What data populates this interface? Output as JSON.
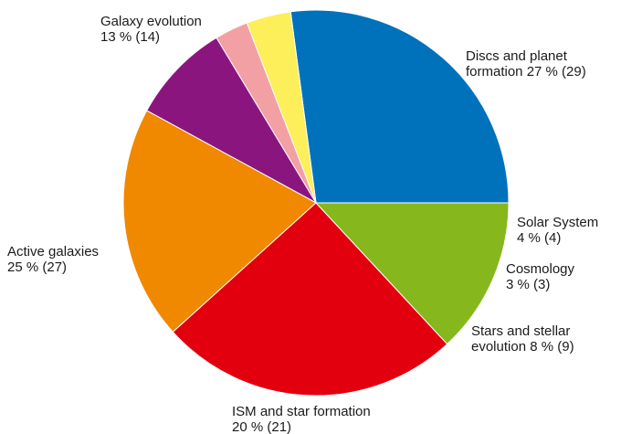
{
  "chart_data": {
    "type": "pie",
    "title": "",
    "slices": [
      {
        "name": "Discs and planet formation",
        "percent": 27,
        "count": 29,
        "color": "#0072bc",
        "label_lines": [
          "Discs and planet",
          "formation 27 % (29)"
        ]
      },
      {
        "name": "Solar System",
        "percent": 4,
        "count": 4,
        "color": "#fcef5a",
        "label_lines": [
          "Solar System",
          "4 % (4)"
        ]
      },
      {
        "name": "Cosmology",
        "percent": 3,
        "count": 3,
        "color": "#f2a0a4",
        "label_lines": [
          "Cosmology",
          "3 % (3)"
        ]
      },
      {
        "name": "Stars and stellar evolution",
        "percent": 8,
        "count": 9,
        "color": "#8b157e",
        "label_lines": [
          "Stars and stellar",
          "evolution 8 % (9)"
        ]
      },
      {
        "name": "ISM and star formation",
        "percent": 20,
        "count": 21,
        "color": "#f08800",
        "label_lines": [
          "ISM and star formation",
          "20 % (21)"
        ]
      },
      {
        "name": "Active galaxies",
        "percent": 25,
        "count": 27,
        "color": "#e2000f",
        "label_lines": [
          "Active galaxies",
          "25 % (27)"
        ]
      },
      {
        "name": "Galaxy evolution",
        "percent": 13,
        "count": 14,
        "color": "#86b81e",
        "label_lines": [
          "Galaxy evolution",
          "13 % (14)"
        ]
      }
    ]
  }
}
